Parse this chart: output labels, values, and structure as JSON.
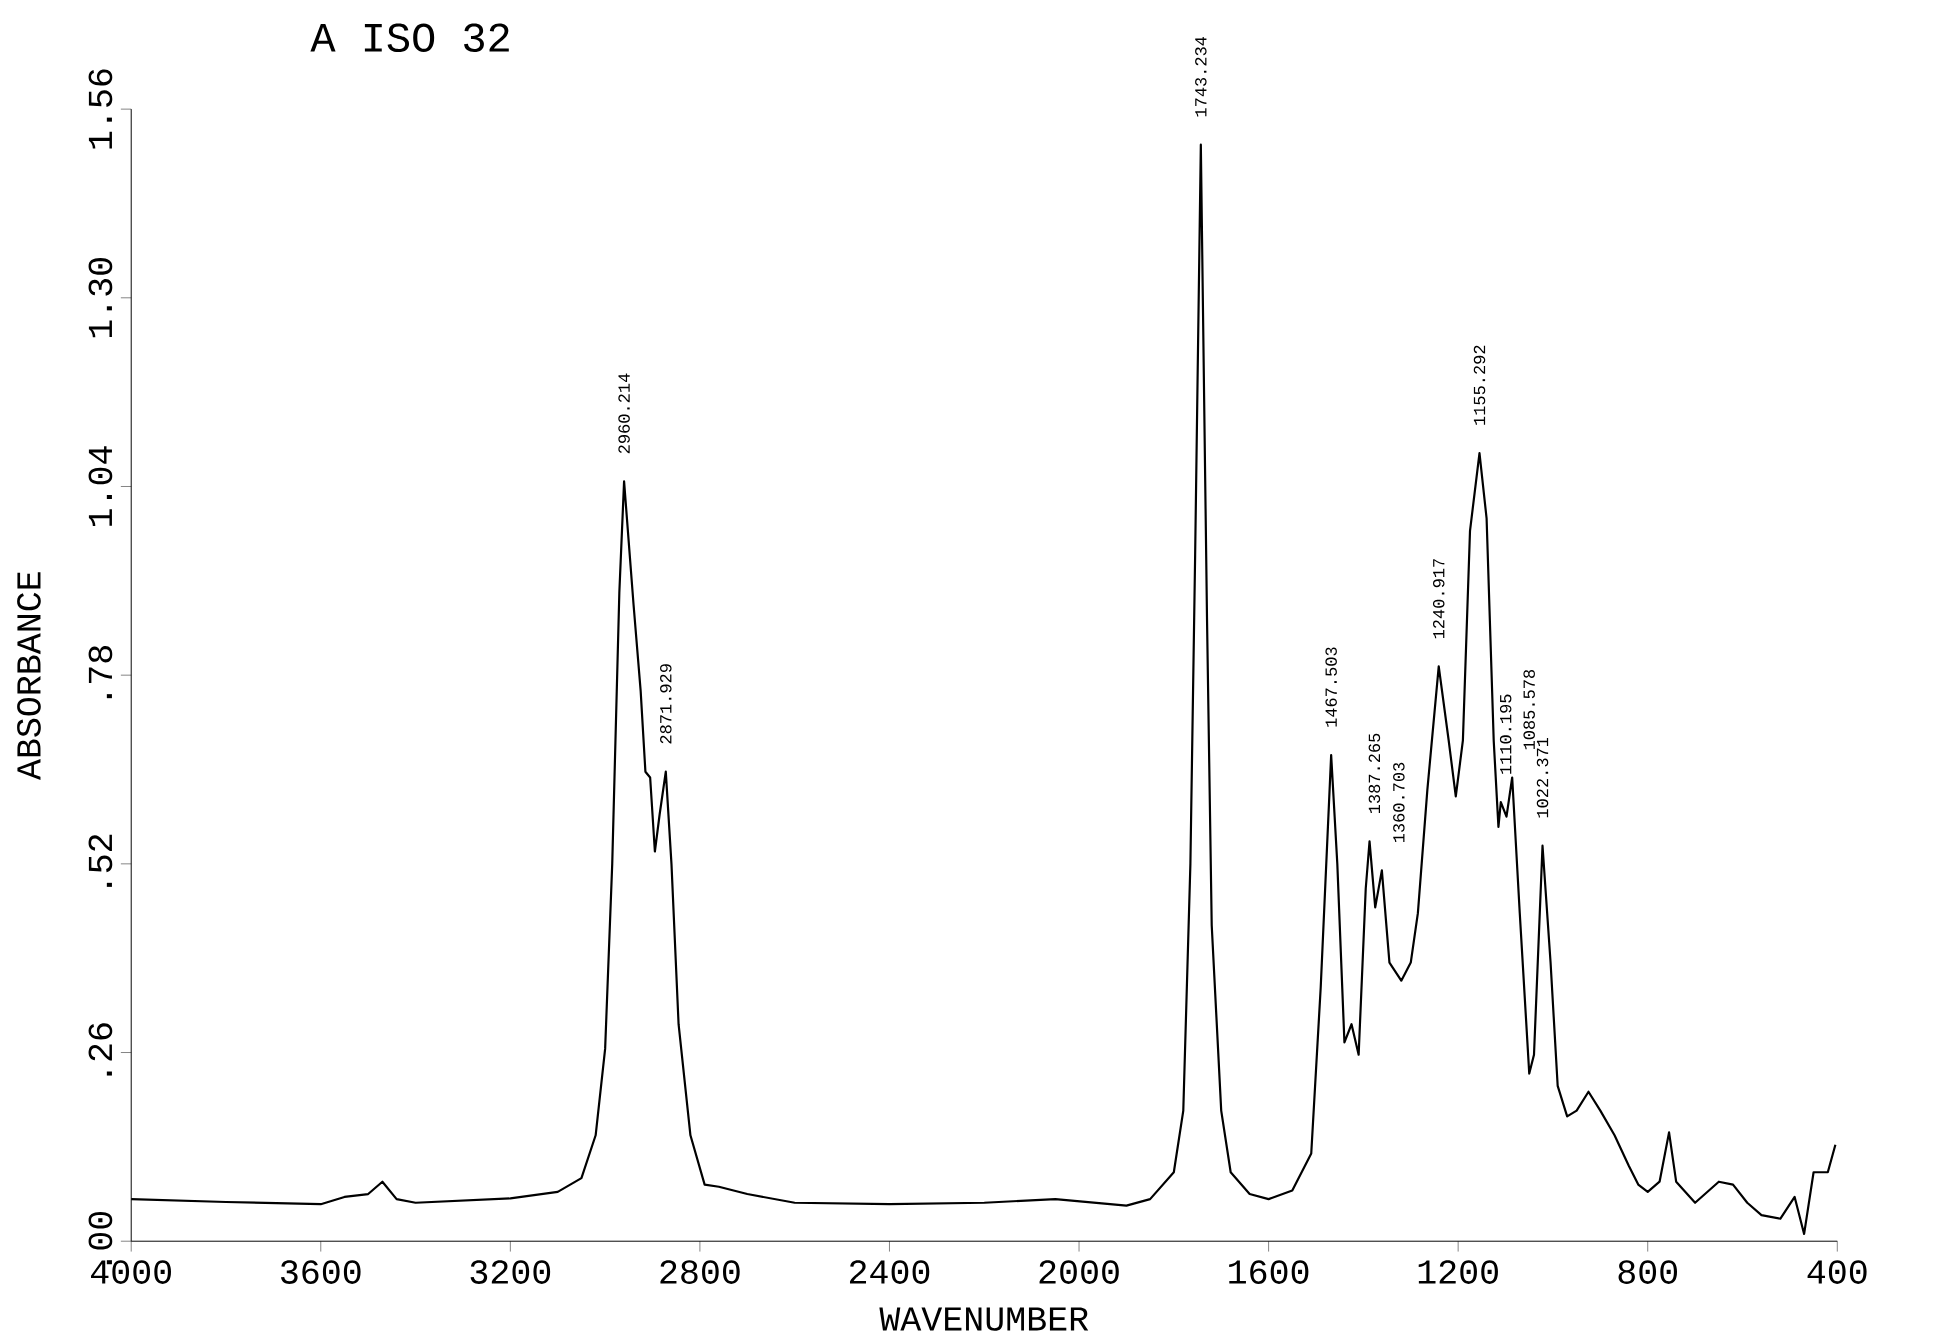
{
  "chart_data": {
    "type": "line",
    "title": "A ISO 32",
    "xlabel": "WAVENUMBER",
    "ylabel": "ABSORBANCE",
    "color": "#000000",
    "x": [
      4000,
      3800,
      3600,
      3550,
      3500,
      3470,
      3440,
      3400,
      3200,
      3100,
      3050,
      3020,
      3000,
      2985,
      2970,
      2960,
      2950,
      2940,
      2925,
      2915,
      2905,
      2895,
      2885,
      2872,
      2860,
      2845,
      2820,
      2790,
      2760,
      2700,
      2600,
      2400,
      2200,
      2050,
      1900,
      1850,
      1800,
      1780,
      1765,
      1755,
      1743,
      1730,
      1720,
      1700,
      1680,
      1640,
      1600,
      1550,
      1510,
      1490,
      1468,
      1455,
      1440,
      1425,
      1410,
      1395,
      1387,
      1375,
      1361,
      1345,
      1320,
      1300,
      1285,
      1265,
      1241,
      1220,
      1205,
      1190,
      1175,
      1155,
      1140,
      1125,
      1115,
      1110,
      1098,
      1086,
      1070,
      1050,
      1040,
      1022,
      1005,
      990,
      970,
      950,
      925,
      900,
      870,
      840,
      820,
      800,
      775,
      755,
      740,
      700,
      650,
      620,
      590,
      560,
      520,
      490,
      470,
      450,
      420,
      404
    ],
    "values": [
      0.058,
      0.054,
      0.051,
      0.061,
      0.065,
      0.082,
      0.058,
      0.053,
      0.059,
      0.068,
      0.087,
      0.146,
      0.265,
      0.52,
      0.894,
      1.047,
      0.962,
      0.877,
      0.758,
      0.647,
      0.639,
      0.537,
      0.588,
      0.647,
      0.52,
      0.299,
      0.146,
      0.078,
      0.075,
      0.065,
      0.053,
      0.051,
      0.053,
      0.058,
      0.049,
      0.058,
      0.095,
      0.18,
      0.52,
      0.945,
      1.511,
      0.86,
      0.435,
      0.18,
      0.095,
      0.065,
      0.058,
      0.07,
      0.121,
      0.35,
      0.67,
      0.52,
      0.274,
      0.299,
      0.257,
      0.486,
      0.551,
      0.46,
      0.511,
      0.384,
      0.359,
      0.384,
      0.452,
      0.622,
      0.792,
      0.69,
      0.613,
      0.69,
      0.979,
      1.086,
      0.996,
      0.69,
      0.571,
      0.605,
      0.585,
      0.639,
      0.452,
      0.231,
      0.257,
      0.545,
      0.384,
      0.214,
      0.172,
      0.18,
      0.206,
      0.18,
      0.146,
      0.104,
      0.078,
      0.068,
      0.082,
      0.15,
      0.082,
      0.053,
      0.082,
      0.078,
      0.053,
      0.036,
      0.031,
      0.061,
      0.01,
      0.095,
      0.095,
      0.133
    ],
    "xlim": [
      4000,
      400
    ],
    "xticks": [
      4000,
      3600,
      3200,
      2800,
      2400,
      2000,
      1600,
      1200,
      800,
      400
    ],
    "ylim": [
      0,
      1.56
    ],
    "yticks": [
      {
        "value": 0,
        "label": ".00"
      },
      {
        "value": 0.26,
        "label": ".26"
      },
      {
        "value": 0.52,
        "label": ".52"
      },
      {
        "value": 0.78,
        "label": ".78"
      },
      {
        "value": 1.04,
        "label": "1.04"
      },
      {
        "value": 1.3,
        "label": "1.30"
      },
      {
        "value": 1.56,
        "label": "1.56"
      }
    ],
    "annotations": [
      {
        "text": "2960.214",
        "x": 2960,
        "y": 1.047
      },
      {
        "text": "2871.929",
        "x": 2872,
        "y": 0.647
      },
      {
        "text": "1743.234",
        "x": 1743,
        "y": 1.511
      },
      {
        "text": "1467.503",
        "x": 1468,
        "y": 0.67
      },
      {
        "text": "1387.265",
        "x": 1387,
        "y": 0.551
      },
      {
        "text": "1360.703",
        "x": 1361,
        "y": 0.511
      },
      {
        "text": "1240.917",
        "x": 1241,
        "y": 0.792
      },
      {
        "text": "1155.292",
        "x": 1155,
        "y": 1.086
      },
      {
        "text": "1110.195",
        "x": 1110,
        "y": 0.605
      },
      {
        "text": "1085.578",
        "x": 1086,
        "y": 0.639
      },
      {
        "text": "1022.371",
        "x": 1022,
        "y": 0.545
      }
    ]
  }
}
